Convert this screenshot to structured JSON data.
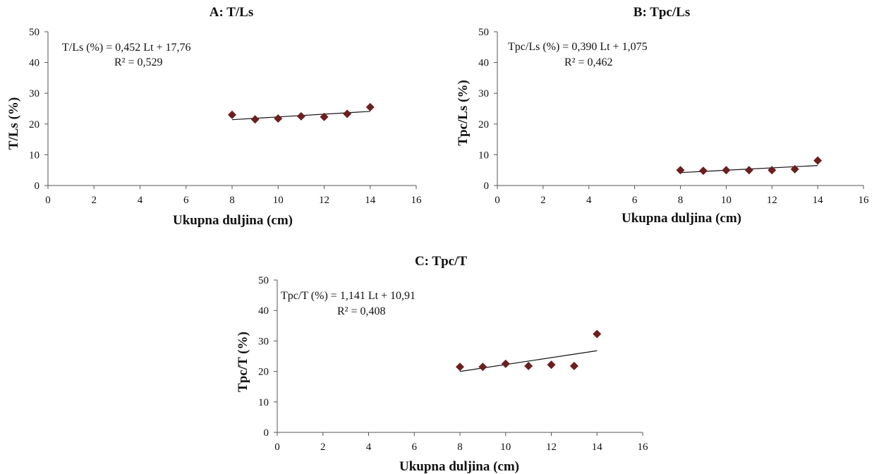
{
  "colors": {
    "marker": "#6b1f1f",
    "trendline": "#111111",
    "axis": "#555555"
  },
  "chart_data": [
    {
      "type": "scatter",
      "title": "A: T/Ls",
      "xlabel": "Ukupna duljina (cm)",
      "ylabel": "T/Ls (%)",
      "xlim": [
        0,
        16
      ],
      "ylim": [
        0,
        50
      ],
      "xticks": [
        0,
        2,
        4,
        6,
        8,
        10,
        12,
        14,
        16
      ],
      "yticks": [
        0,
        10,
        20,
        30,
        40,
        50
      ],
      "grid": false,
      "x": [
        8,
        9,
        10,
        11,
        12,
        13,
        14
      ],
      "y": [
        23.0,
        21.5,
        21.8,
        22.5,
        22.3,
        23.3,
        25.5
      ],
      "trendline": {
        "x": [
          8,
          14
        ],
        "y": [
          21.4,
          24.1
        ]
      },
      "equation": "T/Ls (%) = 0,452 Lt + 17,76",
      "r2": "R² = 0,529"
    },
    {
      "type": "scatter",
      "title": "B: Tpc/Ls",
      "xlabel": "Ukupna duljina (cm)",
      "ylabel": "Tpc/Ls (%)",
      "xlim": [
        0,
        16
      ],
      "ylim": [
        0,
        50
      ],
      "xticks": [
        0,
        2,
        4,
        6,
        8,
        10,
        12,
        14,
        16
      ],
      "yticks": [
        0,
        10,
        20,
        30,
        40,
        50
      ],
      "grid": false,
      "x": [
        8,
        9,
        10,
        11,
        12,
        13,
        14
      ],
      "y": [
        5.0,
        4.8,
        5.0,
        5.0,
        5.0,
        5.3,
        8.1
      ],
      "trendline": {
        "x": [
          8,
          14
        ],
        "y": [
          4.2,
          6.5
        ]
      },
      "equation": "Tpc/Ls (%) = 0,390 Lt + 1,075",
      "r2": "R² = 0,462"
    },
    {
      "type": "scatter",
      "title": "C: Tpc/T",
      "xlabel": "Ukupna duljina (cm)",
      "ylabel": "Tpc/T (%)",
      "xlim": [
        0,
        16
      ],
      "ylim": [
        0,
        50
      ],
      "xticks": [
        0,
        2,
        4,
        6,
        8,
        10,
        12,
        14,
        16
      ],
      "yticks": [
        0,
        10,
        20,
        30,
        40,
        50
      ],
      "grid": false,
      "x": [
        8,
        9,
        10,
        11,
        12,
        13,
        14
      ],
      "y": [
        21.5,
        21.5,
        22.5,
        21.8,
        22.2,
        21.8,
        32.3
      ],
      "trendline": {
        "x": [
          8,
          14
        ],
        "y": [
          20.0,
          26.8
        ]
      },
      "equation": "Tpc/T (%) = 1,141 Lt + 10,91",
      "r2": "R² = 0,408"
    }
  ]
}
